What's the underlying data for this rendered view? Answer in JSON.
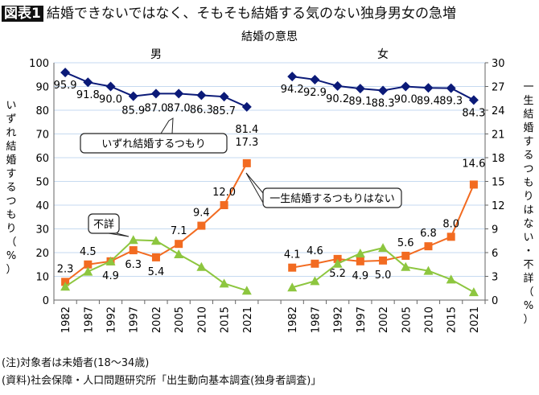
{
  "title": {
    "badge": "図表1",
    "text": "結婚できないではなく、そもそも結婚する気のない独身男女の急増"
  },
  "chart_data": {
    "type": "line",
    "title": "結婚の意思",
    "panels": [
      "男",
      "女"
    ],
    "categories": [
      "1982",
      "1987",
      "1992",
      "1997",
      "2002",
      "2005",
      "2010",
      "2015",
      "2021"
    ],
    "left_axis": {
      "label": "いずれ結婚するつもり（%）",
      "range": [
        0,
        100
      ],
      "ticks": [
        0,
        10,
        20,
        30,
        40,
        50,
        60,
        70,
        80,
        90,
        100
      ]
    },
    "right_axis": {
      "label": "一生結婚するつもりはない・不詳（%）",
      "range": [
        0,
        30
      ],
      "ticks": [
        0,
        3,
        6,
        9,
        12,
        15,
        18,
        21,
        24,
        27,
        30
      ]
    },
    "grid": true,
    "series": [
      {
        "name": "いずれ結婚するつもり",
        "axis": "left",
        "color": "#0b1a78",
        "marker": "diamond",
        "male": [
          95.9,
          91.8,
          90.0,
          85.9,
          87.0,
          87.0,
          86.3,
          85.7,
          81.4
        ],
        "female": [
          94.2,
          92.9,
          90.2,
          89.1,
          88.3,
          90.0,
          89.4,
          89.3,
          84.3
        ]
      },
      {
        "name": "一生結婚するつもりはない",
        "axis": "right",
        "color": "#f26b21",
        "marker": "square",
        "male": [
          2.3,
          4.5,
          4.9,
          6.3,
          5.4,
          7.1,
          9.4,
          12.0,
          17.3
        ],
        "female": [
          4.1,
          4.6,
          5.2,
          4.9,
          5.0,
          5.6,
          6.8,
          8.0,
          14.6
        ]
      },
      {
        "name": "不詳",
        "axis": "right",
        "color": "#8dc63f",
        "marker": "triangle",
        "male": [
          1.7,
          3.6,
          4.9,
          7.6,
          7.5,
          5.8,
          4.2,
          2.1,
          1.2
        ],
        "female": [
          1.6,
          2.4,
          4.6,
          5.9,
          6.6,
          4.2,
          3.7,
          2.6,
          1.0
        ]
      }
    ]
  },
  "notes": [
    "(注)対象者は未婚者(18～34歳)",
    "(資料)社会保障・人口問題研究所「出生動向基本調査(独身者調査)」"
  ]
}
